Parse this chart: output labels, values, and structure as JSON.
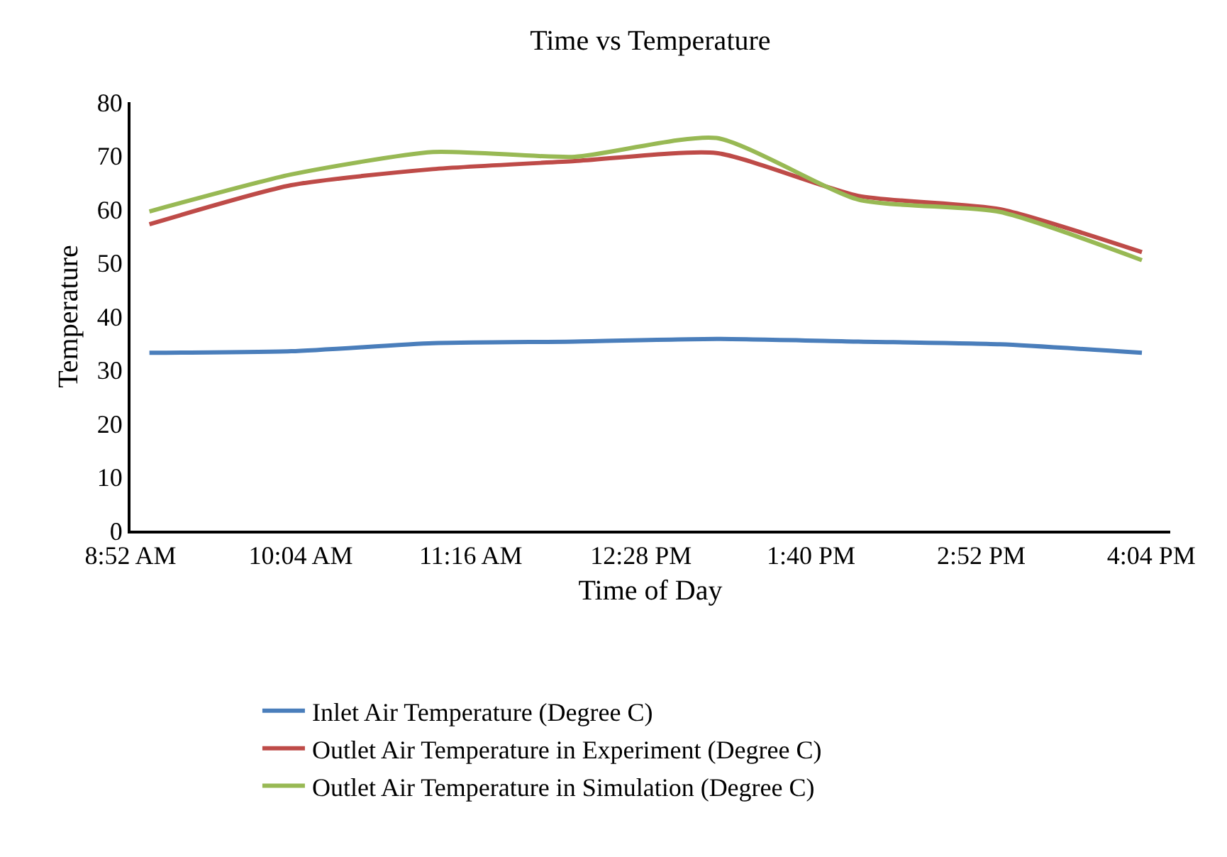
{
  "chart_data": {
    "type": "line",
    "title": "Time vs Temperature",
    "xlabel": "Time of Day",
    "ylabel": "Temperature",
    "x": [
      9,
      10,
      11,
      12,
      13,
      14,
      15,
      16
    ],
    "series": [
      {
        "name": "Inlet Air Temperature (Degree C)",
        "color": "#4a7ebb",
        "values": [
          33.2,
          33.5,
          35,
          35.3,
          35.8,
          35.3,
          34.8,
          33.2
        ]
      },
      {
        "name": "Outlet Air Temperature in Experiment (Degree C)",
        "color": "#be4b48",
        "values": [
          57.2,
          64.5,
          67.5,
          69,
          70.5,
          62.5,
          60,
          52
        ]
      },
      {
        "name": "Outlet Air Temperature in Simulation (Degree C)",
        "color": "#98b954",
        "values": [
          59.6,
          66.5,
          70.7,
          69.8,
          73.3,
          61.8,
          59.5,
          50.5
        ]
      }
    ],
    "xlim": [
      8.8667,
      16.2
    ],
    "xticks": [
      {
        "value": 8.8667,
        "label": "8:52 AM"
      },
      {
        "value": 10.0667,
        "label": "10:04 AM"
      },
      {
        "value": 11.2667,
        "label": "11:16 AM"
      },
      {
        "value": 12.4667,
        "label": "12:28 PM"
      },
      {
        "value": 13.6667,
        "label": "1:40 PM"
      },
      {
        "value": 14.8667,
        "label": "2:52 PM"
      },
      {
        "value": 16.0667,
        "label": "4:04 PM"
      }
    ],
    "ylim": [
      0,
      80
    ],
    "yticks": [
      0,
      10,
      20,
      30,
      40,
      50,
      60,
      70,
      80
    ],
    "grid": false,
    "legend": "bottom",
    "marker": "none",
    "line_style": "solid"
  }
}
